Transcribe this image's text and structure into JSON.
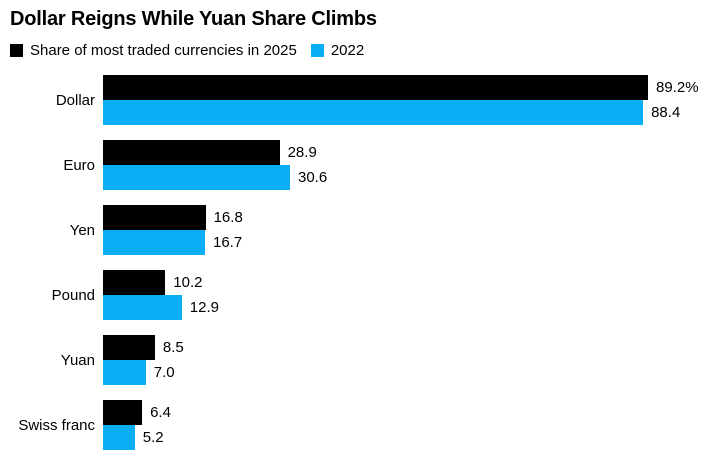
{
  "title": "Dollar Reigns While Yuan Share Climbs",
  "legend": [
    {
      "label": "Share of most traded currencies in 2025",
      "color": "#000000"
    },
    {
      "label": "2022",
      "color": "#0aaef5"
    }
  ],
  "chart_data": {
    "type": "bar",
    "orientation": "horizontal",
    "title": "Dollar Reigns While Yuan Share Climbs",
    "categories": [
      "Dollar",
      "Euro",
      "Yen",
      "Pound",
      "Yuan",
      "Swiss franc"
    ],
    "series": [
      {
        "name": "Share of most traded currencies in 2025",
        "color": "#000000",
        "values": [
          89.2,
          28.9,
          16.8,
          10.2,
          8.5,
          6.4
        ],
        "labels": [
          "89.2%",
          "28.9",
          "16.8",
          "10.2",
          "8.5",
          "6.4"
        ]
      },
      {
        "name": "2022",
        "color": "#0aaef5",
        "values": [
          88.4,
          30.6,
          16.7,
          12.9,
          7.0,
          5.2
        ],
        "labels": [
          "88.4",
          "30.6",
          "16.7",
          "12.9",
          "7.0",
          "5.2"
        ]
      }
    ],
    "xlim": [
      0,
      89.2
    ],
    "grid": false,
    "legend_position": "top-left",
    "value_labels": "outside-end"
  }
}
